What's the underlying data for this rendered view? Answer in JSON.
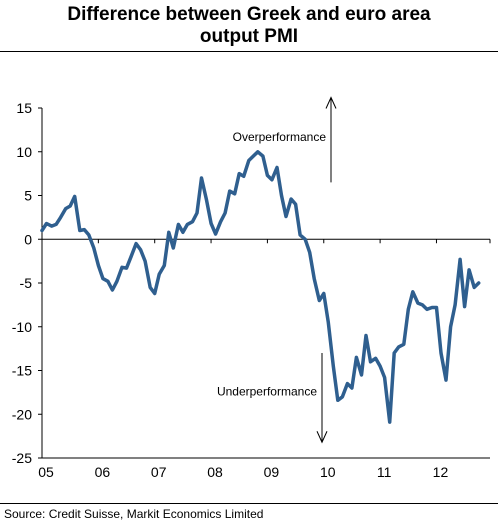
{
  "title_line1": "Difference between Greek and euro area",
  "title_line2": "output PMI",
  "source": "Source: Credit Suisse, Markit Economics Limited",
  "colors": {
    "line": "#2f5f8f",
    "axis": "#000000"
  },
  "chart_data": {
    "type": "line",
    "title": "Difference between Greek and euro area output PMI",
    "xlabel": "",
    "ylabel": "",
    "ylim": [
      -25,
      15
    ],
    "yticks": [
      15,
      10,
      5,
      0,
      -5,
      -10,
      -15,
      -20,
      -25
    ],
    "xticks": [
      "05",
      "06",
      "07",
      "08",
      "09",
      "10",
      "11",
      "12"
    ],
    "grid": false,
    "annotations": [
      {
        "text": "Overperformance",
        "arrow": "up"
      },
      {
        "text": "Underperformance",
        "arrow": "down"
      }
    ],
    "series": [
      {
        "x": [
          2005.0,
          2005.08,
          2005.17,
          2005.25,
          2005.33,
          2005.42,
          2005.5,
          2005.58,
          2005.67,
          2005.75,
          2005.83,
          2005.92,
          2006.0,
          2006.08,
          2006.17,
          2006.25,
          2006.33,
          2006.42,
          2006.5,
          2006.58,
          2006.67,
          2006.75,
          2006.83,
          2006.92,
          2007.0,
          2007.08,
          2007.17,
          2007.25,
          2007.33,
          2007.42,
          2007.5,
          2007.58,
          2007.67,
          2007.75,
          2007.83,
          2007.92,
          2008.0,
          2008.08,
          2008.17,
          2008.25,
          2008.33,
          2008.42,
          2008.5,
          2008.58,
          2008.67,
          2008.75,
          2008.83,
          2008.92,
          2009.0,
          2009.08,
          2009.17,
          2009.25,
          2009.33,
          2009.42,
          2009.5,
          2009.58,
          2009.67,
          2009.75,
          2009.83,
          2009.92,
          2010.0,
          2010.08,
          2010.17,
          2010.25,
          2010.33,
          2010.42,
          2010.5,
          2010.58,
          2010.67,
          2010.75,
          2010.83,
          2010.92,
          2011.0,
          2011.08,
          2011.17,
          2011.25,
          2011.33,
          2011.42,
          2011.5,
          2011.58,
          2011.67,
          2011.75,
          2011.83,
          2011.92,
          2012.0,
          2012.08,
          2012.17,
          2012.25,
          2012.33,
          2012.42,
          2012.5,
          2012.58,
          2012.67,
          2012.75
        ],
        "y": [
          1.0,
          1.8,
          1.5,
          1.7,
          2.5,
          3.5,
          3.8,
          4.9,
          1.0,
          1.1,
          0.5,
          -1.0,
          -3.0,
          -4.5,
          -4.8,
          -5.8,
          -4.8,
          -3.2,
          -3.3,
          -2.0,
          -0.5,
          -1.2,
          -2.5,
          -5.5,
          -6.2,
          -4.0,
          -3.0,
          0.8,
          -1.0,
          1.7,
          0.8,
          1.7,
          2.0,
          3.0,
          7.0,
          4.5,
          1.8,
          0.6,
          2.0,
          3.0,
          5.5,
          5.2,
          7.5,
          7.2,
          9.0,
          9.5,
          10.0,
          9.5,
          7.3,
          6.8,
          8.2,
          5.0,
          2.6,
          4.6,
          4.0,
          0.5,
          0.0,
          -1.5,
          -4.5,
          -7.0,
          -6.2,
          -9.5,
          -14.5,
          -18.4,
          -18.0,
          -16.5,
          -17.0,
          -13.5,
          -15.5,
          -11.0,
          -14.0,
          -13.6,
          -14.5,
          -15.8,
          -20.9,
          -13.0,
          -12.3,
          -12.0,
          -8.0,
          -6.0,
          -7.3,
          -7.5,
          -8.0,
          -7.8,
          -7.8,
          -13.0,
          -16.1,
          -10.0,
          -7.5,
          -2.3,
          -7.7,
          -3.5,
          -5.5,
          -5.0
        ]
      }
    ]
  }
}
